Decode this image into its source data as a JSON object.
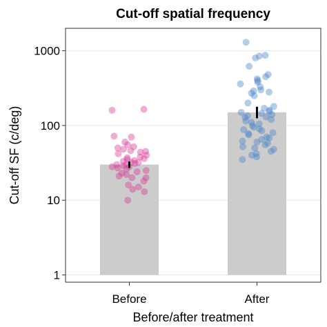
{
  "chart_data": {
    "type": "bar",
    "title": "Cut-off spatial frequency",
    "xlabel": "Before/after treatment",
    "ylabel": "Cut-off SF (c/deg)",
    "categories": [
      "Before",
      "After"
    ],
    "values": [
      30,
      150
    ],
    "error": [
      [
        27,
        33
      ],
      [
        125,
        178
      ]
    ],
    "yscale": "log",
    "ylim": [
      0.8,
      2000
    ],
    "yticks": [
      1,
      10,
      100,
      1000
    ],
    "ytick_labels": [
      "1",
      "10",
      "100",
      "1000"
    ],
    "grid": true,
    "bar_color": "#cccccc",
    "points": [
      {
        "category": "Before",
        "color": "#d63c96",
        "values": [
          160,
          165,
          72,
          70,
          60,
          55,
          52,
          50,
          48,
          46,
          45,
          44,
          42,
          40,
          38,
          37,
          36,
          35,
          34,
          33,
          32,
          32,
          31,
          30,
          30,
          29,
          28,
          28,
          27,
          26,
          25,
          24,
          23,
          22,
          21,
          20,
          20,
          18,
          16,
          15,
          14,
          13,
          10
        ]
      },
      {
        "category": "After",
        "color": "#4a86c8",
        "values": [
          1300,
          870,
          850,
          800,
          620,
          480,
          450,
          420,
          400,
          380,
          360,
          330,
          300,
          290,
          280,
          270,
          250,
          200,
          180,
          170,
          160,
          155,
          150,
          145,
          140,
          135,
          130,
          128,
          120,
          115,
          110,
          105,
          100,
          95,
          90,
          88,
          85,
          80,
          78,
          75,
          70,
          68,
          65,
          62,
          60,
          58,
          55,
          52,
          50,
          48,
          45,
          42,
          40,
          38,
          35
        ]
      }
    ]
  }
}
